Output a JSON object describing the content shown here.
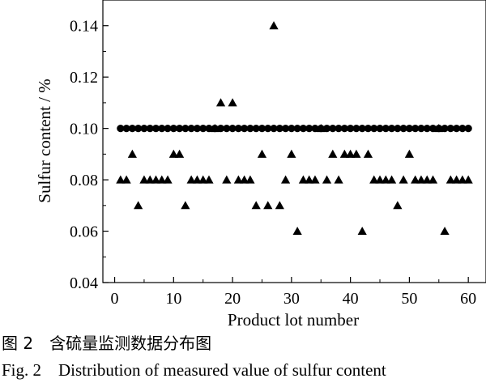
{
  "chart_data": {
    "type": "scatter",
    "title": "",
    "xlabel": "Product lot number",
    "ylabel": "Sulfur content / %",
    "xlim": [
      -2,
      63
    ],
    "ylim": [
      0.04,
      0.15
    ],
    "x_ticks": [
      0,
      10,
      20,
      30,
      40,
      50,
      60
    ],
    "y_ticks": [
      0.04,
      0.06,
      0.08,
      0.1,
      0.12,
      0.14
    ],
    "x_tick_labels": [
      "0",
      "10",
      "20",
      "30",
      "40",
      "50",
      "60"
    ],
    "y_tick_labels": [
      "0.04",
      "0.06",
      "0.08",
      "0.10",
      "0.12",
      "0.14"
    ],
    "grid": false,
    "legend": "none",
    "series": [
      {
        "marker": "circle",
        "x": [
          1,
          2,
          3,
          4,
          5,
          6,
          7,
          8,
          9,
          10,
          11,
          12,
          13,
          14,
          15,
          16,
          17,
          18,
          19,
          20,
          21,
          22,
          23,
          24,
          25,
          26,
          27,
          28,
          29,
          30,
          31,
          32,
          33,
          34,
          35,
          36,
          37,
          38,
          39,
          40,
          41,
          42,
          43,
          44,
          45,
          46,
          47,
          48,
          49,
          50,
          51,
          52,
          53,
          54,
          55,
          56,
          57,
          58,
          59,
          60
        ],
        "values": [
          0.1,
          0.1,
          0.1,
          0.1,
          0.1,
          0.1,
          0.1,
          0.1,
          0.1,
          0.1,
          0.1,
          0.1,
          0.1,
          0.1,
          0.1,
          0.1,
          0.1,
          0.1,
          0.1,
          0.1,
          0.1,
          0.1,
          0.1,
          0.1,
          0.1,
          0.1,
          0.1,
          0.1,
          0.1,
          0.1,
          0.1,
          0.1,
          0.1,
          0.1,
          0.1,
          0.1,
          0.1,
          0.1,
          0.1,
          0.1,
          0.1,
          0.1,
          0.1,
          0.1,
          0.1,
          0.1,
          0.1,
          0.1,
          0.1,
          0.1,
          0.1,
          0.1,
          0.1,
          0.1,
          0.1,
          0.1,
          0.1,
          0.1,
          0.1,
          0.1
        ]
      },
      {
        "marker": "triangle",
        "x": [
          1,
          2,
          3,
          4,
          5,
          6,
          7,
          8,
          9,
          10,
          11,
          12,
          13,
          14,
          15,
          16,
          17,
          18,
          19,
          20,
          21,
          22,
          23,
          24,
          25,
          26,
          27,
          28,
          29,
          30,
          31,
          32,
          33,
          34,
          35,
          36,
          37,
          38,
          39,
          40,
          41,
          42,
          43,
          44,
          45,
          46,
          47,
          48,
          49,
          50,
          51,
          52,
          53,
          54,
          55,
          56,
          57,
          58,
          59,
          60
        ],
        "values": [
          0.08,
          0.08,
          0.09,
          0.07,
          0.08,
          0.08,
          0.08,
          0.08,
          0.08,
          0.09,
          0.09,
          0.07,
          0.08,
          0.08,
          0.08,
          0.08,
          0.1,
          0.11,
          0.08,
          0.11,
          0.08,
          0.08,
          0.08,
          0.07,
          0.09,
          0.07,
          0.14,
          0.07,
          0.08,
          0.09,
          0.06,
          0.08,
          0.08,
          0.08,
          0.1,
          0.08,
          0.09,
          0.08,
          0.09,
          0.09,
          0.09,
          0.06,
          0.09,
          0.08,
          0.08,
          0.08,
          0.08,
          0.07,
          0.08,
          0.09,
          0.08,
          0.08,
          0.08,
          0.08,
          0.1,
          0.06,
          0.08,
          0.08,
          0.08,
          0.08
        ]
      }
    ]
  },
  "caption": {
    "cn": "图 2　含硫量监测数据分布图",
    "en": "Fig. 2    Distribution of measured value of sulfur content"
  }
}
